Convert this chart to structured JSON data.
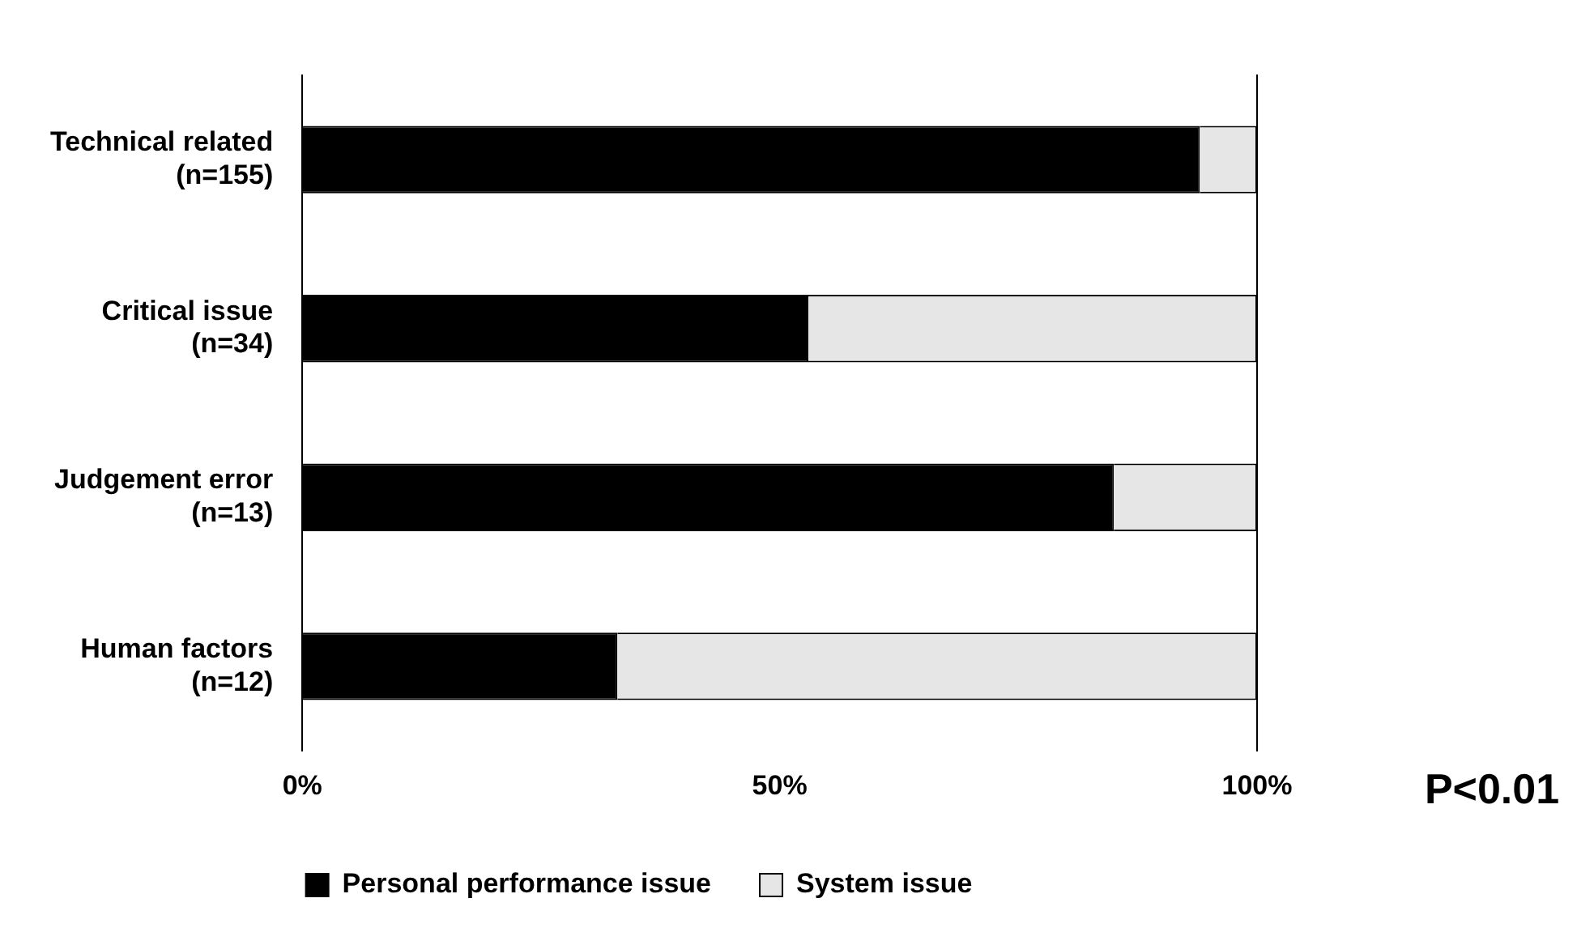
{
  "chart_data": {
    "type": "bar",
    "orientation": "horizontal",
    "stacked": true,
    "categories": [
      "Technical related\n(n=155)",
      "Critical issue\n(n=34)",
      "Judgement error\n(n=13)",
      "Human factors\n(n=12)"
    ],
    "series": [
      {
        "name": "Personal performance issue",
        "color": "#000000",
        "values": [
          94,
          53,
          85,
          33
        ]
      },
      {
        "name": "System issue",
        "color": "#e6e6e6",
        "values": [
          6,
          47,
          15,
          67
        ]
      }
    ],
    "xlim": [
      0,
      100
    ],
    "xticks": [
      {
        "value": 0,
        "label": "0%"
      },
      {
        "value": 50,
        "label": "50%"
      },
      {
        "value": 100,
        "label": "100%"
      }
    ],
    "grid": false,
    "legend": "bottom",
    "annotations": [
      "P<0.01"
    ]
  }
}
